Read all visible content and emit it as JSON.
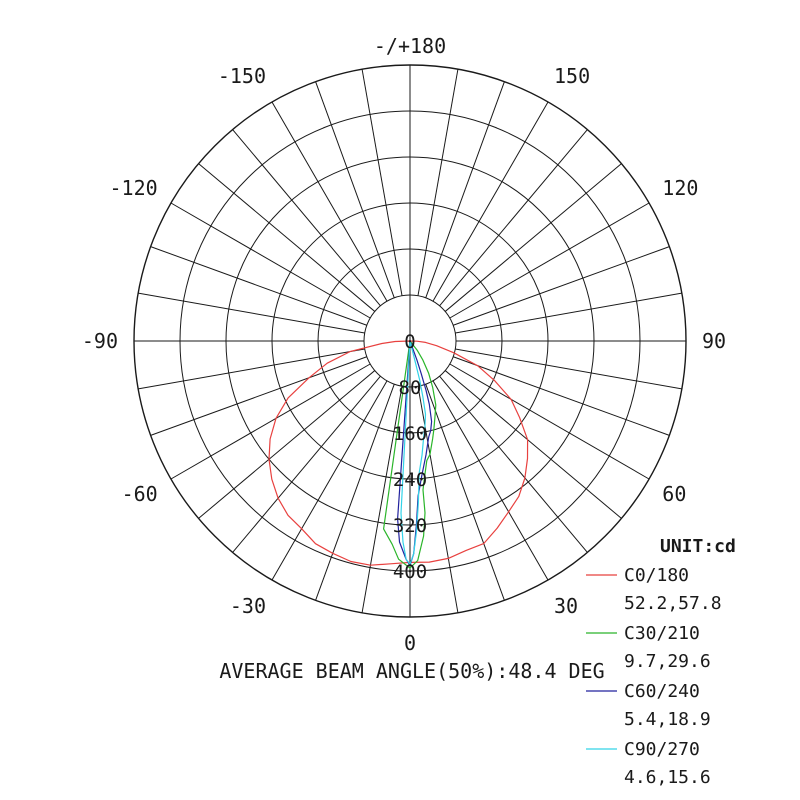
{
  "chart_data": {
    "type": "polar",
    "title": "",
    "unit_label": "UNIT:cd",
    "beam_angle_text": "AVERAGE BEAM ANGLE(50%):48.4 DEG",
    "radial_ticks": [
      "0",
      "80",
      "160",
      "240",
      "320",
      "400"
    ],
    "angle_labels": [
      {
        "deg": 0,
        "text": "0"
      },
      {
        "deg": 30,
        "text": "30"
      },
      {
        "deg": 60,
        "text": "60"
      },
      {
        "deg": 90,
        "text": "90"
      },
      {
        "deg": 120,
        "text": "120"
      },
      {
        "deg": 150,
        "text": "150"
      },
      {
        "deg": 180,
        "text": "-/+180"
      },
      {
        "deg": -30,
        "text": "-30"
      },
      {
        "deg": -60,
        "text": "-60"
      },
      {
        "deg": -90,
        "text": "-90"
      },
      {
        "deg": -120,
        "text": "-120"
      },
      {
        "deg": -150,
        "text": "-150"
      }
    ],
    "rlim": [
      0,
      480
    ],
    "series": [
      {
        "name": "C0/180",
        "beam_angles": "52.2,57.8",
        "color": "#e8413f",
        "points": [
          [
            -88,
            26
          ],
          [
            -85,
            49
          ],
          [
            -80,
            106
          ],
          [
            -75,
            149
          ],
          [
            -70,
            187
          ],
          [
            -65,
            234
          ],
          [
            -60,
            269
          ],
          [
            -55,
            297
          ],
          [
            -50,
            320
          ],
          [
            -45,
            340
          ],
          [
            -40,
            357
          ],
          [
            -35,
            370
          ],
          [
            -30,
            377
          ],
          [
            -25,
            389
          ],
          [
            -20,
            393
          ],
          [
            -15,
            397
          ],
          [
            -10,
            396
          ],
          [
            -5,
            389
          ],
          [
            0,
            385
          ],
          [
            5,
            386
          ],
          [
            10,
            384
          ],
          [
            15,
            377
          ],
          [
            20,
            375
          ],
          [
            25,
            359
          ],
          [
            30,
            343
          ],
          [
            35,
            330
          ],
          [
            40,
            311
          ],
          [
            45,
            289
          ],
          [
            50,
            267
          ],
          [
            55,
            233
          ],
          [
            60,
            203
          ],
          [
            65,
            162
          ],
          [
            70,
            125
          ],
          [
            75,
            79
          ],
          [
            80,
            47
          ],
          [
            85,
            27
          ],
          [
            88,
            12
          ]
        ]
      },
      {
        "name": "C30/210",
        "beam_angles": "9.7,29.6",
        "color": "#2ab52a",
        "points": [
          [
            -8,
            330
          ],
          [
            -5,
            355
          ],
          [
            -3,
            380
          ],
          [
            0,
            395
          ],
          [
            2,
            382
          ],
          [
            4,
            340
          ],
          [
            5,
            300
          ],
          [
            5,
            260
          ],
          [
            6,
            240
          ],
          [
            8,
            210
          ],
          [
            10,
            200
          ],
          [
            13,
            175
          ],
          [
            15,
            160
          ],
          [
            18,
            140
          ],
          [
            22,
            120
          ],
          [
            26,
            90
          ],
          [
            30,
            65
          ],
          [
            34,
            40
          ],
          [
            38,
            20
          ],
          [
            42,
            0
          ]
        ]
      },
      {
        "name": "C60/240",
        "beam_angles": "5.4,18.9",
        "color": "#22229e",
        "points": [
          [
            -4,
            310
          ],
          [
            -3,
            350
          ],
          [
            -1,
            380
          ],
          [
            0,
            390
          ],
          [
            1,
            370
          ],
          [
            2,
            320
          ],
          [
            3,
            270
          ],
          [
            5,
            235
          ],
          [
            8,
            200
          ],
          [
            11,
            170
          ],
          [
            13,
            160
          ],
          [
            15,
            145
          ],
          [
            17,
            115
          ],
          [
            18,
            90
          ],
          [
            19,
            60
          ],
          [
            20,
            35
          ],
          [
            20,
            0
          ]
        ]
      },
      {
        "name": "C90/270",
        "beam_angles": "4.6,15.6",
        "color": "#33d3e8",
        "points": [
          [
            -3,
            300
          ],
          [
            -2,
            350
          ],
          [
            -1,
            380
          ],
          [
            0,
            388
          ],
          [
            1,
            370
          ],
          [
            2,
            330
          ],
          [
            3,
            280
          ],
          [
            4,
            230
          ],
          [
            6,
            200
          ],
          [
            8,
            170
          ],
          [
            10,
            150
          ],
          [
            12,
            130
          ],
          [
            13,
            100
          ],
          [
            14,
            70
          ],
          [
            14,
            40
          ],
          [
            13,
            0
          ]
        ]
      }
    ],
    "grid": true,
    "legend_position": "bottom-right"
  }
}
